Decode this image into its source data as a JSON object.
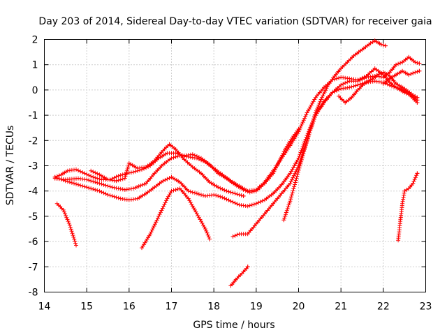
{
  "chart_data": {
    "type": "scatter",
    "title": "Day 203 of 2014, Sidereal Day-to-day VTEC variation (SDTVAR) for receiver gaia",
    "xlabel": "GPS time / hours",
    "ylabel": "SDTVAR / TECUs",
    "xlim": [
      14,
      23
    ],
    "ylim": [
      -8,
      2
    ],
    "xticks": [
      14,
      15,
      16,
      17,
      18,
      19,
      20,
      21,
      22,
      23
    ],
    "yticks": [
      -8,
      -7,
      -6,
      -5,
      -4,
      -3,
      -2,
      -1,
      0,
      1,
      2
    ],
    "grid": true,
    "marker": "+",
    "color": "#ff0000",
    "series": [
      {
        "name": "track-1",
        "points": [
          [
            14.25,
            -3.45
          ],
          [
            14.4,
            -3.35
          ],
          [
            14.55,
            -3.2
          ],
          [
            14.75,
            -3.15
          ],
          [
            14.95,
            -3.3
          ],
          [
            15.15,
            -3.45
          ],
          [
            15.35,
            -3.55
          ],
          [
            15.55,
            -3.55
          ],
          [
            15.75,
            -3.4
          ],
          [
            15.95,
            -3.3
          ],
          [
            16.1,
            -3.25
          ],
          [
            16.3,
            -3.15
          ],
          [
            16.5,
            -3.0
          ],
          [
            16.7,
            -2.7
          ],
          [
            16.9,
            -2.5
          ],
          [
            17.1,
            -2.5
          ],
          [
            17.3,
            -2.6
          ],
          [
            17.5,
            -2.55
          ],
          [
            17.7,
            -2.7
          ],
          [
            17.9,
            -2.95
          ],
          [
            18.1,
            -3.3
          ],
          [
            18.3,
            -3.5
          ],
          [
            18.5,
            -3.75
          ],
          [
            18.7,
            -3.95
          ],
          [
            18.85,
            -4.05
          ],
          [
            19.0,
            -4.0
          ],
          [
            19.2,
            -3.7
          ],
          [
            19.4,
            -3.3
          ],
          [
            19.55,
            -2.8
          ],
          [
            19.7,
            -2.3
          ],
          [
            19.85,
            -1.9
          ],
          [
            20.0,
            -1.55
          ]
        ]
      },
      {
        "name": "track-2",
        "points": [
          [
            14.25,
            -3.45
          ],
          [
            14.5,
            -3.6
          ],
          [
            14.8,
            -3.75
          ],
          [
            15.0,
            -3.85
          ],
          [
            15.3,
            -4.0
          ],
          [
            15.5,
            -4.15
          ],
          [
            15.8,
            -4.3
          ],
          [
            16.0,
            -4.35
          ],
          [
            16.2,
            -4.3
          ],
          [
            16.4,
            -4.1
          ],
          [
            16.6,
            -3.85
          ],
          [
            16.8,
            -3.6
          ],
          [
            17.0,
            -3.45
          ],
          [
            17.2,
            -3.65
          ],
          [
            17.4,
            -4.0
          ],
          [
            17.6,
            -4.1
          ],
          [
            17.8,
            -4.2
          ],
          [
            18.0,
            -4.15
          ],
          [
            18.2,
            -4.25
          ],
          [
            18.4,
            -4.4
          ],
          [
            18.6,
            -4.55
          ],
          [
            18.8,
            -4.6
          ],
          [
            19.0,
            -4.5
          ],
          [
            19.2,
            -4.35
          ],
          [
            19.4,
            -4.1
          ],
          [
            19.6,
            -3.75
          ],
          [
            19.8,
            -3.3
          ],
          [
            20.0,
            -2.7
          ],
          [
            20.2,
            -1.8
          ],
          [
            20.4,
            -1.0
          ],
          [
            20.6,
            -0.5
          ],
          [
            20.8,
            -0.1
          ],
          [
            21.0,
            0.2
          ],
          [
            21.2,
            0.35
          ],
          [
            21.4,
            0.35
          ],
          [
            21.6,
            0.5
          ],
          [
            21.8,
            0.55
          ],
          [
            22.0,
            0.7
          ],
          [
            22.15,
            0.55
          ],
          [
            22.3,
            0.25
          ],
          [
            22.5,
            0.05
          ],
          [
            22.7,
            -0.2
          ],
          [
            22.8,
            -0.3
          ]
        ]
      },
      {
        "name": "track-3",
        "points": [
          [
            14.25,
            -3.5
          ],
          [
            14.5,
            -3.55
          ],
          [
            14.8,
            -3.5
          ],
          [
            15.0,
            -3.55
          ],
          [
            15.3,
            -3.7
          ],
          [
            15.6,
            -3.85
          ],
          [
            15.9,
            -3.95
          ],
          [
            16.1,
            -3.9
          ],
          [
            16.4,
            -3.7
          ],
          [
            16.6,
            -3.3
          ],
          [
            16.8,
            -2.95
          ],
          [
            17.0,
            -2.7
          ],
          [
            17.2,
            -2.6
          ],
          [
            17.4,
            -2.65
          ],
          [
            17.6,
            -2.7
          ],
          [
            17.8,
            -2.85
          ],
          [
            18.0,
            -3.1
          ],
          [
            18.2,
            -3.35
          ],
          [
            18.4,
            -3.6
          ],
          [
            18.6,
            -3.8
          ],
          [
            18.8,
            -4.0
          ],
          [
            19.0,
            -3.95
          ],
          [
            19.2,
            -3.65
          ],
          [
            19.4,
            -3.2
          ],
          [
            19.6,
            -2.7
          ],
          [
            19.8,
            -2.2
          ],
          [
            20.0,
            -1.65
          ],
          [
            20.2,
            -0.9
          ],
          [
            20.4,
            -0.3
          ],
          [
            20.6,
            0.1
          ],
          [
            20.8,
            0.4
          ],
          [
            21.0,
            0.5
          ],
          [
            21.2,
            0.45
          ],
          [
            21.4,
            0.4
          ],
          [
            21.6,
            0.55
          ],
          [
            21.8,
            0.85
          ],
          [
            22.0,
            0.6
          ],
          [
            22.15,
            0.3
          ],
          [
            22.3,
            0.1
          ],
          [
            22.5,
            -0.1
          ],
          [
            22.7,
            -0.25
          ],
          [
            22.8,
            -0.4
          ]
        ]
      },
      {
        "name": "track-4",
        "points": [
          [
            16.3,
            -6.25
          ],
          [
            16.5,
            -5.7
          ],
          [
            16.7,
            -5.0
          ],
          [
            16.9,
            -4.3
          ],
          [
            17.0,
            -4.0
          ],
          [
            17.2,
            -3.9
          ],
          [
            17.4,
            -4.3
          ],
          [
            17.6,
            -4.9
          ],
          [
            17.8,
            -5.5
          ],
          [
            17.9,
            -5.9
          ]
        ]
      },
      {
        "name": "track-5",
        "points": [
          [
            14.3,
            -4.5
          ],
          [
            14.45,
            -4.75
          ],
          [
            14.6,
            -5.35
          ],
          [
            14.75,
            -6.15
          ]
        ]
      },
      {
        "name": "track-6",
        "points": [
          [
            15.1,
            -3.2
          ],
          [
            15.3,
            -3.35
          ],
          [
            15.5,
            -3.55
          ],
          [
            15.7,
            -3.6
          ],
          [
            15.9,
            -3.5
          ],
          [
            16.0,
            -2.9
          ],
          [
            16.2,
            -3.1
          ],
          [
            16.4,
            -3.05
          ],
          [
            16.6,
            -2.8
          ],
          [
            16.8,
            -2.4
          ],
          [
            16.95,
            -2.15
          ],
          [
            17.1,
            -2.35
          ],
          [
            17.3,
            -2.75
          ],
          [
            17.5,
            -3.05
          ],
          [
            17.7,
            -3.3
          ],
          [
            17.9,
            -3.65
          ],
          [
            18.1,
            -3.85
          ],
          [
            18.3,
            -4.0
          ],
          [
            18.5,
            -4.1
          ],
          [
            18.7,
            -4.2
          ]
        ]
      },
      {
        "name": "track-7",
        "points": [
          [
            18.45,
            -5.8
          ],
          [
            18.6,
            -5.7
          ],
          [
            18.8,
            -5.7
          ],
          [
            19.0,
            -5.3
          ],
          [
            19.2,
            -4.9
          ],
          [
            19.4,
            -4.5
          ],
          [
            19.6,
            -4.1
          ],
          [
            19.8,
            -3.7
          ],
          [
            20.0,
            -3.0
          ],
          [
            20.2,
            -2.0
          ],
          [
            20.4,
            -1.0
          ],
          [
            20.6,
            -0.45
          ],
          [
            20.8,
            -0.1
          ],
          [
            21.0,
            0.05
          ],
          [
            21.2,
            0.1
          ],
          [
            21.4,
            0.2
          ],
          [
            21.6,
            0.3
          ],
          [
            21.8,
            0.35
          ],
          [
            22.0,
            0.3
          ],
          [
            22.2,
            0.15
          ],
          [
            22.4,
            0.05
          ],
          [
            22.6,
            -0.15
          ],
          [
            22.8,
            -0.5
          ]
        ]
      },
      {
        "name": "track-8",
        "points": [
          [
            18.4,
            -7.75
          ],
          [
            18.55,
            -7.45
          ],
          [
            18.7,
            -7.2
          ],
          [
            18.8,
            -7.0
          ]
        ]
      },
      {
        "name": "track-9",
        "points": [
          [
            19.65,
            -5.15
          ],
          [
            19.8,
            -4.4
          ],
          [
            19.95,
            -3.5
          ],
          [
            20.1,
            -2.6
          ],
          [
            20.25,
            -1.7
          ],
          [
            20.4,
            -0.9
          ],
          [
            20.55,
            -0.3
          ],
          [
            20.7,
            0.2
          ],
          [
            20.85,
            0.55
          ],
          [
            21.0,
            0.85
          ],
          [
            21.15,
            1.1
          ],
          [
            21.3,
            1.35
          ],
          [
            21.5,
            1.6
          ],
          [
            21.7,
            1.85
          ],
          [
            21.8,
            1.95
          ],
          [
            21.95,
            1.8
          ],
          [
            22.05,
            1.75
          ]
        ]
      },
      {
        "name": "track-10",
        "points": [
          [
            20.95,
            -0.25
          ],
          [
            21.1,
            -0.5
          ],
          [
            21.25,
            -0.3
          ],
          [
            21.4,
            0.0
          ],
          [
            21.55,
            0.25
          ],
          [
            21.7,
            0.4
          ],
          [
            21.85,
            0.55
          ],
          [
            22.0,
            0.5
          ],
          [
            22.15,
            0.7
          ],
          [
            22.3,
            1.0
          ],
          [
            22.45,
            1.1
          ],
          [
            22.6,
            1.3
          ],
          [
            22.75,
            1.1
          ],
          [
            22.85,
            1.05
          ]
        ]
      },
      {
        "name": "track-11",
        "points": [
          [
            22.0,
            0.25
          ],
          [
            22.15,
            0.45
          ],
          [
            22.3,
            0.6
          ],
          [
            22.45,
            0.75
          ],
          [
            22.6,
            0.6
          ],
          [
            22.75,
            0.7
          ],
          [
            22.85,
            0.75
          ]
        ]
      },
      {
        "name": "track-12",
        "points": [
          [
            22.35,
            -5.95
          ],
          [
            22.4,
            -5.2
          ],
          [
            22.45,
            -4.5
          ],
          [
            22.5,
            -4.0
          ],
          [
            22.6,
            -3.9
          ],
          [
            22.7,
            -3.7
          ],
          [
            22.8,
            -3.3
          ]
        ]
      }
    ]
  }
}
